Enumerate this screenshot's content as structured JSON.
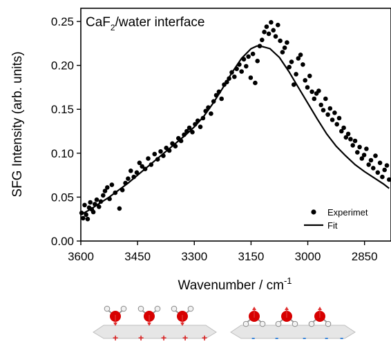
{
  "chart_data": {
    "type": "scatter",
    "title": "CaF",
    "title_sub": "2",
    "title_rest": "/water interface",
    "xlabel": "Wavenumber / cm",
    "xlabel_sup": "-1",
    "ylabel": "SFG Intensity (arb. units)",
    "xlim": [
      3600,
      2780
    ],
    "ylim": [
      0,
      0.265
    ],
    "x_reversed": true,
    "xticks": [
      3600,
      3450,
      3300,
      3150,
      3000,
      2850
    ],
    "xtick_labels": [
      "3600",
      "3450",
      "3300",
      "3150",
      "3000",
      "2850"
    ],
    "yticks": [
      0,
      0.05,
      0.1,
      0.15,
      0.2,
      0.25
    ],
    "ytick_labels": [
      "0.00",
      "0.05",
      "0.10",
      "0.15",
      "0.20",
      "0.25"
    ],
    "legend": {
      "position": "bottom-right",
      "entries": [
        {
          "label": "Experimet",
          "marker": "dot"
        },
        {
          "label": "Fit",
          "marker": "line"
        }
      ]
    },
    "series": [
      {
        "name": "Experimet",
        "style": "markers",
        "color": "#000000",
        "x": [
          3598,
          3594,
          3590,
          3586,
          3582,
          3578,
          3575,
          3571,
          3567,
          3563,
          3558,
          3552,
          3547,
          3541,
          3536,
          3530,
          3524,
          3518,
          3509,
          3498,
          3490,
          3482,
          3475,
          3468,
          3460,
          3452,
          3445,
          3438,
          3430,
          3422,
          3414,
          3405,
          3397,
          3389,
          3382,
          3374,
          3366,
          3358,
          3350,
          3342,
          3335,
          3327,
          3320,
          3313,
          3305,
          3298,
          3291,
          3284,
          3277,
          3270,
          3263,
          3256,
          3249,
          3242,
          3235,
          3228,
          3221,
          3214,
          3208,
          3201,
          3194,
          3188,
          3181,
          3175,
          3169,
          3163,
          3157,
          3151,
          3145,
          3139,
          3133,
          3127,
          3121,
          3115,
          3109,
          3103,
          3097,
          3091,
          3085,
          3079,
          3073,
          3067,
          3061,
          3055,
          3049,
          3043,
          3037,
          3031,
          3025,
          3019,
          3013,
          3007,
          3001,
          2995,
          2989,
          2983,
          2977,
          2971,
          2965,
          2959,
          2953,
          2947,
          2941,
          2935,
          2929,
          2923,
          2917,
          2911,
          2905,
          2899,
          2893,
          2887,
          2881,
          2875,
          2869,
          2863,
          2857,
          2851,
          2845,
          2839,
          2833,
          2827,
          2821,
          2815,
          2809,
          2803,
          2797,
          2791,
          2785
        ],
        "y": [
          0.032,
          0.026,
          0.041,
          0.03,
          0.025,
          0.038,
          0.044,
          0.036,
          0.033,
          0.042,
          0.047,
          0.039,
          0.045,
          0.052,
          0.057,
          0.061,
          0.048,
          0.064,
          0.055,
          0.037,
          0.058,
          0.066,
          0.071,
          0.08,
          0.073,
          0.078,
          0.089,
          0.085,
          0.082,
          0.094,
          0.087,
          0.099,
          0.093,
          0.102,
          0.097,
          0.106,
          0.103,
          0.111,
          0.108,
          0.117,
          0.114,
          0.121,
          0.125,
          0.129,
          0.124,
          0.133,
          0.137,
          0.13,
          0.14,
          0.148,
          0.152,
          0.145,
          0.159,
          0.166,
          0.17,
          0.162,
          0.178,
          0.181,
          0.185,
          0.192,
          0.187,
          0.196,
          0.201,
          0.193,
          0.207,
          0.199,
          0.21,
          0.186,
          0.213,
          0.18,
          0.205,
          0.222,
          0.229,
          0.238,
          0.244,
          0.236,
          0.249,
          0.24,
          0.233,
          0.246,
          0.228,
          0.215,
          0.22,
          0.226,
          0.198,
          0.204,
          0.178,
          0.19,
          0.208,
          0.212,
          0.201,
          0.183,
          0.175,
          0.188,
          0.17,
          0.162,
          0.168,
          0.171,
          0.155,
          0.149,
          0.162,
          0.144,
          0.151,
          0.138,
          0.146,
          0.133,
          0.14,
          0.125,
          0.129,
          0.118,
          0.122,
          0.116,
          0.109,
          0.114,
          0.101,
          0.107,
          0.094,
          0.098,
          0.105,
          0.087,
          0.092,
          0.083,
          0.097,
          0.078,
          0.089,
          0.073,
          0.081,
          0.086,
          0.07
        ]
      },
      {
        "name": "Fit",
        "style": "line",
        "color": "#000000",
        "x": [
          3600,
          3575,
          3550,
          3525,
          3500,
          3475,
          3450,
          3425,
          3400,
          3375,
          3350,
          3325,
          3300,
          3275,
          3250,
          3225,
          3200,
          3175,
          3150,
          3135,
          3125,
          3100,
          3075,
          3050,
          3025,
          3000,
          2975,
          2950,
          2925,
          2900,
          2875,
          2850,
          2825,
          2800,
          2785
        ],
        "y": [
          0.03,
          0.036,
          0.043,
          0.05,
          0.058,
          0.066,
          0.075,
          0.084,
          0.093,
          0.102,
          0.111,
          0.12,
          0.13,
          0.142,
          0.157,
          0.174,
          0.192,
          0.208,
          0.219,
          0.222,
          0.222,
          0.219,
          0.209,
          0.193,
          0.175,
          0.157,
          0.139,
          0.122,
          0.108,
          0.097,
          0.087,
          0.079,
          0.072,
          0.065,
          0.06
        ]
      }
    ]
  },
  "schematic": {
    "left_charges": [
      "+",
      "+",
      "+",
      "+",
      "+"
    ],
    "right_charges": [
      "-",
      "-",
      "-",
      "-",
      "-"
    ]
  }
}
